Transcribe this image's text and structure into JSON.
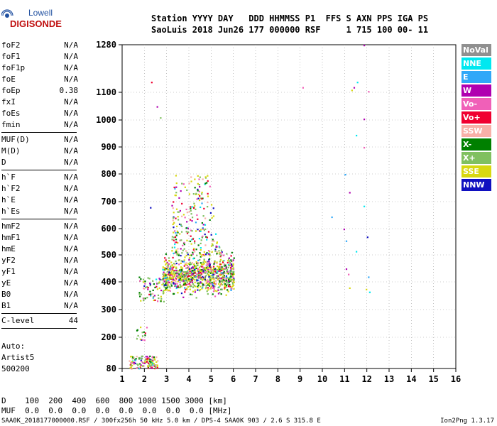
{
  "logo": {
    "line1": "Lowell",
    "line2": "DIGISONDE"
  },
  "header": {
    "line1": "Station YYYY DAY   DDD HHMMSS P1  FFS S AXN PPS IGA PS",
    "line2": "SaoLuis 2018 Jun26 177 000000 RSF     1 715 100 00- 11"
  },
  "params": {
    "group1": [
      {
        "name": "foF2",
        "value": "N/A"
      },
      {
        "name": "foF1",
        "value": "N/A"
      },
      {
        "name": "foF1p",
        "value": "N/A"
      },
      {
        "name": "foE",
        "value": "N/A"
      },
      {
        "name": "foEp",
        "value": "0.38"
      },
      {
        "name": "fxI",
        "value": "N/A"
      },
      {
        "name": "foEs",
        "value": "N/A"
      },
      {
        "name": "fmin",
        "value": "N/A"
      }
    ],
    "group2": [
      {
        "name": "MUF(D)",
        "value": "N/A"
      },
      {
        "name": "M(D)",
        "value": "N/A"
      },
      {
        "name": "D",
        "value": "N/A"
      }
    ],
    "group3": [
      {
        "name": "h`F",
        "value": "N/A"
      },
      {
        "name": "h`F2",
        "value": "N/A"
      },
      {
        "name": "h`E",
        "value": "N/A"
      },
      {
        "name": "h`Es",
        "value": "N/A"
      }
    ],
    "group4": [
      {
        "name": "hmF2",
        "value": "N/A"
      },
      {
        "name": "hmF1",
        "value": "N/A"
      },
      {
        "name": "hmE",
        "value": "N/A"
      },
      {
        "name": "yF2",
        "value": "N/A"
      },
      {
        "name": "yF1",
        "value": "N/A"
      },
      {
        "name": "yE",
        "value": "N/A"
      },
      {
        "name": "B0",
        "value": "N/A"
      },
      {
        "name": "B1",
        "value": "N/A"
      }
    ],
    "group5": [
      {
        "name": "C-level",
        "value": "44"
      }
    ]
  },
  "auto": {
    "line1": "Auto:",
    "line2": "Artist5",
    "line3": "500200"
  },
  "legend": [
    {
      "label": "NoVal",
      "color": "#909090"
    },
    {
      "label": "NNE",
      "color": "#00e8f0"
    },
    {
      "label": "E",
      "color": "#30a8f8"
    },
    {
      "label": "W",
      "color": "#b000b0"
    },
    {
      "label": "Vo-",
      "color": "#f060b8"
    },
    {
      "label": "Vo+",
      "color": "#f00030"
    },
    {
      "label": "SSW",
      "color": "#f8b0a8"
    },
    {
      "label": "X-",
      "color": "#008000"
    },
    {
      "label": "X+",
      "color": "#80c060"
    },
    {
      "label": "SSE",
      "color": "#d8d810"
    },
    {
      "label": "NNW",
      "color": "#1010c0"
    }
  ],
  "bottom": {
    "d_line": "D    100  200  400  600  800 1000 1500 3000 [km]",
    "muf_line": "MUF  0.0  0.0  0.0  0.0  0.0  0.0  0.0  0.0 [MHz]"
  },
  "footer": {
    "left": "SAA0K_2018177000000.RSF / 300fx256h 50 kHz 5.0 km / DPS-4 SAA0K 903 / 2.6 S 315.8 E",
    "right": "Ion2Png 1.3.17"
  },
  "chart_data": {
    "type": "scatter",
    "title": "",
    "xlabel": "",
    "ylabel": "",
    "xlim": [
      1,
      16
    ],
    "ylim": [
      80,
      1280
    ],
    "x_ticks": [
      "1",
      "2",
      "3",
      "4",
      "5",
      "6",
      "7",
      "8",
      "9",
      "10",
      "11",
      "12",
      "13",
      "14",
      "15",
      "16"
    ],
    "y_ticks": [
      "80",
      "200",
      "300",
      "400",
      "500",
      "600",
      "700",
      "800",
      "900",
      "1000",
      "1100",
      "1280"
    ],
    "y_scale": "nonlinear",
    "y_scale_points": [
      {
        "h": 80,
        "h_ticks": [
          80,
          200,
          300,
          400,
          500,
          600,
          700,
          800,
          900,
          1000,
          1100,
          1280
        ]
      }
    ],
    "grid": true,
    "clusters": [
      {
        "name": "main-echo",
        "x_range": [
          2.8,
          6.0
        ],
        "y_range": [
          330,
          520
        ],
        "count": 900
      },
      {
        "name": "high-spread",
        "x_range": [
          3.0,
          5.6
        ],
        "y_range": [
          500,
          800
        ],
        "count": 260
      },
      {
        "name": "low-onset",
        "x_range": [
          1.7,
          3.0
        ],
        "y_range": [
          330,
          420
        ],
        "count": 80
      },
      {
        "name": "low-freq",
        "x_range": [
          1.3,
          2.6
        ],
        "y_range": [
          82,
          130
        ],
        "count": 120
      },
      {
        "name": "e-layer",
        "x_range": [
          1.6,
          2.1
        ],
        "y_range": [
          180,
          240
        ],
        "count": 15
      }
    ],
    "scattered_points": [
      {
        "x": 2.3,
        "y": 1140,
        "c": "Vo+"
      },
      {
        "x": 2.55,
        "y": 1050,
        "c": "W"
      },
      {
        "x": 2.7,
        "y": 1010,
        "c": "X+"
      },
      {
        "x": 2.25,
        "y": 680,
        "c": "NNW"
      },
      {
        "x": 9.1,
        "y": 1120,
        "c": "Vo-"
      },
      {
        "x": 11.4,
        "y": 1120,
        "c": "W"
      },
      {
        "x": 11.3,
        "y": 1110,
        "c": "SSE"
      },
      {
        "x": 11.55,
        "y": 1140,
        "c": "NNE"
      },
      {
        "x": 12.05,
        "y": 1105,
        "c": "Vo-"
      },
      {
        "x": 11.85,
        "y": 1005,
        "c": "W"
      },
      {
        "x": 11.5,
        "y": 945,
        "c": "NNE"
      },
      {
        "x": 11.85,
        "y": 900,
        "c": "Vo-"
      },
      {
        "x": 11.0,
        "y": 800,
        "c": "E"
      },
      {
        "x": 11.2,
        "y": 735,
        "c": "W"
      },
      {
        "x": 11.85,
        "y": 685,
        "c": "NNE"
      },
      {
        "x": 10.4,
        "y": 645,
        "c": "E"
      },
      {
        "x": 10.95,
        "y": 600,
        "c": "W"
      },
      {
        "x": 12.0,
        "y": 570,
        "c": "NNW"
      },
      {
        "x": 11.05,
        "y": 555,
        "c": "E"
      },
      {
        "x": 11.5,
        "y": 515,
        "c": "NNE"
      },
      {
        "x": 11.05,
        "y": 450,
        "c": "W"
      },
      {
        "x": 11.15,
        "y": 430,
        "c": "Vo-"
      },
      {
        "x": 12.05,
        "y": 420,
        "c": "E"
      },
      {
        "x": 11.2,
        "y": 380,
        "c": "SSE"
      },
      {
        "x": 11.95,
        "y": 375,
        "c": "SSE"
      },
      {
        "x": 12.1,
        "y": 365,
        "c": "NNE"
      },
      {
        "x": 11.85,
        "y": 1280,
        "c": "W"
      }
    ]
  }
}
